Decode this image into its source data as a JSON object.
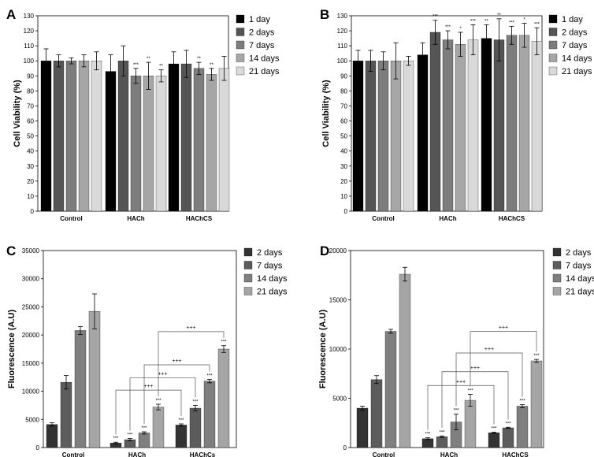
{
  "chart_data": [
    {
      "panel": "A",
      "type": "bar",
      "ylabel": "Cell Viability (%)",
      "ylim": [
        0,
        130
      ],
      "yticks": [
        0,
        10,
        20,
        30,
        40,
        50,
        60,
        70,
        80,
        90,
        100,
        110,
        120,
        130
      ],
      "categories": [
        "Control",
        "HACh",
        "HAChCS"
      ],
      "series": [
        {
          "name": "1 day",
          "color": "#000000",
          "values": [
            100,
            93,
            98
          ],
          "errors": [
            8,
            11,
            8
          ],
          "stars": [
            "",
            "",
            ""
          ]
        },
        {
          "name": "2 days",
          "color": "#555555",
          "values": [
            100,
            100,
            98
          ],
          "errors": [
            4,
            10,
            9
          ],
          "stars": [
            "",
            "",
            ""
          ]
        },
        {
          "name": "7 days",
          "color": "#7d7d7d",
          "values": [
            100,
            90,
            95
          ],
          "errors": [
            2,
            5,
            4
          ],
          "stars": [
            "",
            "***",
            "**"
          ]
        },
        {
          "name": "14 days",
          "color": "#a6a6a6",
          "values": [
            100,
            90,
            91
          ],
          "errors": [
            4,
            9,
            4
          ],
          "stars": [
            "",
            "**",
            "**"
          ]
        },
        {
          "name": "21 days",
          "color": "#d9d9d9",
          "values": [
            100,
            90,
            95
          ],
          "errors": [
            6,
            4,
            8
          ],
          "stars": [
            "",
            "**",
            ""
          ]
        }
      ]
    },
    {
      "panel": "B",
      "type": "bar",
      "ylabel": "Cell Viability (%)",
      "ylim": [
        0,
        130
      ],
      "yticks": [
        0,
        10,
        20,
        30,
        40,
        50,
        60,
        70,
        80,
        90,
        100,
        110,
        120,
        130
      ],
      "categories": [
        "Control",
        "HACh",
        "HAChCS"
      ],
      "series": [
        {
          "name": "1 day",
          "color": "#000000",
          "values": [
            100,
            104,
            115
          ],
          "errors": [
            7,
            8,
            9
          ],
          "stars": [
            "",
            "",
            "**"
          ]
        },
        {
          "name": "2 days",
          "color": "#555555",
          "values": [
            100,
            119,
            114
          ],
          "errors": [
            7,
            8,
            14
          ],
          "stars": [
            "",
            "***",
            "**"
          ]
        },
        {
          "name": "7 days",
          "color": "#7d7d7d",
          "values": [
            100,
            114,
            117
          ],
          "errors": [
            6,
            6,
            6
          ],
          "stars": [
            "",
            "***",
            "***"
          ]
        },
        {
          "name": "14 days",
          "color": "#a6a6a6",
          "values": [
            100,
            111,
            117
          ],
          "errors": [
            12,
            8,
            8
          ],
          "stars": [
            "",
            "*",
            "*"
          ]
        },
        {
          "name": "21 days",
          "color": "#d9d9d9",
          "values": [
            100,
            114,
            113
          ],
          "errors": [
            3,
            10,
            9
          ],
          "stars": [
            "",
            "***",
            "***"
          ]
        }
      ]
    },
    {
      "panel": "C",
      "type": "bar",
      "ylabel": "Fluorescence (A.U)",
      "ylim": [
        0,
        35000
      ],
      "yticks": [
        0,
        5000,
        10000,
        15000,
        20000,
        25000,
        30000,
        35000
      ],
      "categories": [
        "Control",
        "HACh",
        "HAChCs"
      ],
      "series": [
        {
          "name": "2 days",
          "color": "#333333",
          "values": [
            4100,
            800,
            4000
          ],
          "errors": [
            300,
            150,
            200
          ],
          "stars": [
            "",
            "***",
            "***"
          ]
        },
        {
          "name": "7 days",
          "color": "#5c5c5c",
          "values": [
            11600,
            1400,
            7000
          ],
          "errors": [
            1200,
            200,
            500
          ],
          "stars": [
            "",
            "***",
            "***"
          ]
        },
        {
          "name": "14 days",
          "color": "#7f7f7f",
          "values": [
            20800,
            2600,
            11800
          ],
          "errors": [
            700,
            200,
            300
          ],
          "stars": [
            "",
            "***",
            "***"
          ]
        },
        {
          "name": "21 days",
          "color": "#a5a5a5",
          "values": [
            24200,
            7200,
            17500
          ],
          "errors": [
            3100,
            500,
            600
          ],
          "stars": [
            "",
            "***",
            "***"
          ]
        }
      ],
      "comparisons": [
        "+++",
        "+++",
        "+++",
        "+++"
      ]
    },
    {
      "panel": "D",
      "type": "bar",
      "ylabel": "Fluorescence (A.U)",
      "ylim": [
        0,
        20000
      ],
      "yticks": [
        0,
        5000,
        10000,
        15000,
        20000
      ],
      "categories": [
        "Control",
        "HACh",
        "HAChCS"
      ],
      "series": [
        {
          "name": "2 days",
          "color": "#333333",
          "values": [
            4000,
            900,
            1500
          ],
          "errors": [
            200,
            100,
            50
          ],
          "stars": [
            "",
            "***",
            "***"
          ]
        },
        {
          "name": "7 days",
          "color": "#5c5c5c",
          "values": [
            6900,
            1100,
            2000
          ],
          "errors": [
            400,
            80,
            60
          ],
          "stars": [
            "",
            "***",
            "***"
          ]
        },
        {
          "name": "14 days",
          "color": "#7f7f7f",
          "values": [
            11800,
            2600,
            4200
          ],
          "errors": [
            200,
            800,
            150
          ],
          "stars": [
            "",
            "***",
            "***"
          ]
        },
        {
          "name": "21 days",
          "color": "#a5a5a5",
          "values": [
            17600,
            4800,
            8800
          ],
          "errors": [
            700,
            600,
            150
          ],
          "stars": [
            "",
            "***",
            "***"
          ]
        }
      ],
      "comparisons": [
        "+++",
        "+++",
        "+++",
        "+++"
      ]
    }
  ]
}
